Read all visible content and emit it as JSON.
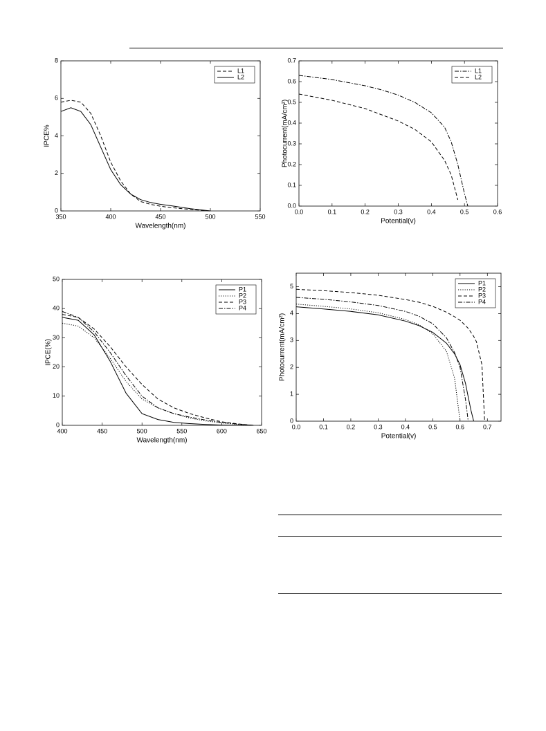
{
  "chart_data": [
    {
      "type": "line",
      "xlabel": "Wavelength(nm)",
      "ylabel": "IPCE%",
      "legend": "upper right",
      "xlim": [
        350,
        550
      ],
      "xticks": [
        350,
        400,
        450,
        500,
        550
      ],
      "ylim": [
        0,
        8
      ],
      "yticks": [
        0,
        2,
        4,
        6,
        8
      ],
      "x": [
        350,
        360,
        370,
        380,
        390,
        400,
        410,
        420,
        430,
        440,
        450,
        460,
        480,
        500
      ],
      "series": [
        {
          "name": "L1",
          "color": "#000000",
          "dash": "dashed",
          "values": [
            5.8,
            5.9,
            5.8,
            5.2,
            4.0,
            2.6,
            1.6,
            0.9,
            0.5,
            0.35,
            0.25,
            0.18,
            0.08,
            0.0
          ]
        },
        {
          "name": "L2",
          "color": "#000000",
          "dash": "solid",
          "values": [
            5.3,
            5.5,
            5.3,
            4.6,
            3.4,
            2.2,
            1.4,
            0.9,
            0.6,
            0.45,
            0.35,
            0.28,
            0.12,
            0.0
          ]
        }
      ]
    },
    {
      "type": "line",
      "xlabel": "Potential(v)",
      "ylabel": "Photocurrent(mA/cm²)",
      "legend": "upper right",
      "xlim": [
        0,
        0.6
      ],
      "xticks": [
        {
          "value": 0,
          "label": "0.0"
        },
        0.1,
        0.2,
        0.3,
        0.4,
        0.5,
        0.6
      ],
      "ylim": [
        0,
        0.7
      ],
      "yticks": [
        {
          "value": 0,
          "label": "0.0"
        },
        0.1,
        0.2,
        0.3,
        0.4,
        0.5,
        0.6,
        0.7
      ],
      "x": [
        0,
        0.05,
        0.1,
        0.15,
        0.2,
        0.25,
        0.3,
        0.35,
        0.4,
        0.44,
        0.46,
        0.48,
        0.5,
        0.51
      ],
      "series": [
        {
          "name": "L1",
          "color": "#000000",
          "dash": "dashdot",
          "values": [
            0.63,
            0.62,
            0.61,
            0.595,
            0.58,
            0.56,
            0.535,
            0.5,
            0.45,
            0.38,
            0.31,
            0.2,
            0.06,
            0.0
          ]
        },
        {
          "name": "L2",
          "color": "#000000",
          "dash": "dashed",
          "values": [
            0.54,
            0.525,
            0.51,
            0.49,
            0.47,
            0.44,
            0.41,
            0.37,
            0.31,
            0.22,
            0.15,
            0.03,
            null,
            null
          ]
        }
      ]
    },
    {
      "type": "line",
      "xlabel": "Wavelength(nm)",
      "ylabel": "IPCE(%)",
      "legend": "upper right",
      "xlim": [
        400,
        650
      ],
      "xticks": [
        400,
        450,
        500,
        550,
        600,
        650
      ],
      "ylim": [
        0,
        50
      ],
      "yticks": [
        0,
        10,
        20,
        30,
        40,
        50
      ],
      "x": [
        400,
        420,
        440,
        460,
        480,
        500,
        520,
        540,
        560,
        580,
        600,
        620,
        640
      ],
      "series": [
        {
          "name": "P1",
          "color": "#000000",
          "dash": "solid",
          "values": [
            37,
            36,
            31,
            22,
            11,
            4,
            2,
            1,
            0.6,
            0.3,
            0.1,
            0,
            0
          ]
        },
        {
          "name": "P2",
          "color": "#000000",
          "dash": "dotted",
          "values": [
            35,
            34,
            30,
            23,
            15,
            9,
            6,
            4,
            2.5,
            1.5,
            0.8,
            0.3,
            0
          ]
        },
        {
          "name": "P3",
          "color": "#000000",
          "dash": "dashed",
          "values": [
            38,
            37,
            33,
            27,
            20,
            14,
            9,
            6,
            4,
            2.5,
            1.2,
            0.5,
            0
          ]
        },
        {
          "name": "P4",
          "color": "#000000",
          "dash": "dashdot",
          "values": [
            39,
            37,
            32,
            25,
            17,
            10,
            6,
            4,
            2.8,
            1.8,
            1,
            0.4,
            0
          ]
        }
      ]
    },
    {
      "type": "line",
      "xlabel": "Potential(v)",
      "ylabel": "Photocurrent(mA/cm²)",
      "legend": "upper right",
      "xlim": [
        0,
        0.75
      ],
      "xticks": [
        {
          "value": 0,
          "label": "0.0"
        },
        0.1,
        0.2,
        0.3,
        0.4,
        0.5,
        0.6,
        0.7
      ],
      "ylim": [
        0,
        5.5
      ],
      "yticks": [
        0,
        1,
        2,
        3,
        4,
        5
      ],
      "x": [
        0,
        0.1,
        0.2,
        0.3,
        0.4,
        0.45,
        0.5,
        0.55,
        0.58,
        0.6,
        0.62,
        0.63,
        0.64,
        0.65,
        0.66,
        0.68,
        0.69
      ],
      "series": [
        {
          "name": "P1",
          "color": "#000000",
          "dash": "solid",
          "values": [
            4.25,
            4.17,
            4.08,
            3.95,
            3.72,
            3.55,
            3.3,
            2.9,
            2.5,
            2.1,
            1.4,
            0.9,
            0.4,
            0,
            null,
            null,
            null
          ]
        },
        {
          "name": "P2",
          "color": "#000000",
          "dash": "dotted",
          "values": [
            4.35,
            4.27,
            4.17,
            4.03,
            3.78,
            3.58,
            3.25,
            2.6,
            1.6,
            0,
            null,
            null,
            null,
            null,
            null,
            null,
            null
          ]
        },
        {
          "name": "P3",
          "color": "#000000",
          "dash": "dashed",
          "values": [
            4.9,
            4.85,
            4.78,
            4.68,
            4.52,
            4.42,
            4.27,
            4.05,
            3.88,
            3.75,
            3.55,
            3.45,
            3.3,
            3.15,
            2.95,
            2.1,
            0
          ]
        },
        {
          "name": "P4",
          "color": "#000000",
          "dash": "dashdot",
          "values": [
            4.6,
            4.53,
            4.43,
            4.3,
            4.08,
            3.9,
            3.62,
            3.1,
            2.55,
            2.0,
            0.8,
            0,
            null,
            null,
            null,
            null,
            null
          ]
        }
      ]
    }
  ]
}
